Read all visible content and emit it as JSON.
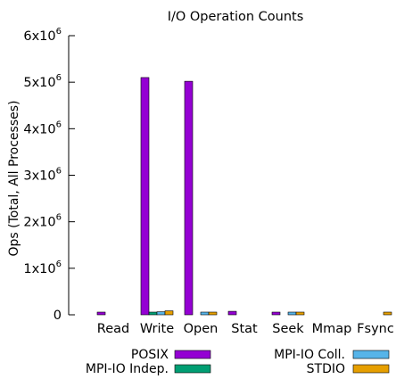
{
  "chart_data": {
    "type": "bar",
    "title": "I/O Operation Counts",
    "xlabel": "",
    "ylabel": "Ops (Total, All Processes)",
    "categories": [
      "Read",
      "Write",
      "Open",
      "Stat",
      "Seek",
      "Mmap",
      "Fsync"
    ],
    "ylim": [
      0,
      6000000
    ],
    "yticks": [
      {
        "value": 0,
        "base": "0",
        "exp": ""
      },
      {
        "value": 1000000,
        "base": "1x10",
        "exp": "6"
      },
      {
        "value": 2000000,
        "base": "2x10",
        "exp": "6"
      },
      {
        "value": 3000000,
        "base": "3x10",
        "exp": "6"
      },
      {
        "value": 4000000,
        "base": "4x10",
        "exp": "6"
      },
      {
        "value": 5000000,
        "base": "5x10",
        "exp": "6"
      },
      {
        "value": 6000000,
        "base": "6x10",
        "exp": "6"
      }
    ],
    "series": [
      {
        "name": "POSIX",
        "color": "#9400d3",
        "values": [
          55000,
          5100000,
          5020000,
          75000,
          5000,
          0,
          0
        ]
      },
      {
        "name": "MPI-IO Indep.",
        "color": "#009e73",
        "values": [
          0,
          15000,
          0,
          0,
          0,
          0,
          0
        ]
      },
      {
        "name": "MPI-IO Coll.",
        "color": "#56b4e9",
        "values": [
          0,
          65000,
          10000,
          0,
          5000,
          0,
          0
        ]
      },
      {
        "name": "STDIO",
        "color": "#e69f00",
        "values": [
          0,
          85000,
          3000,
          0,
          15000,
          0,
          5000
        ]
      }
    ],
    "grid": false,
    "legend_position": "bottom"
  }
}
